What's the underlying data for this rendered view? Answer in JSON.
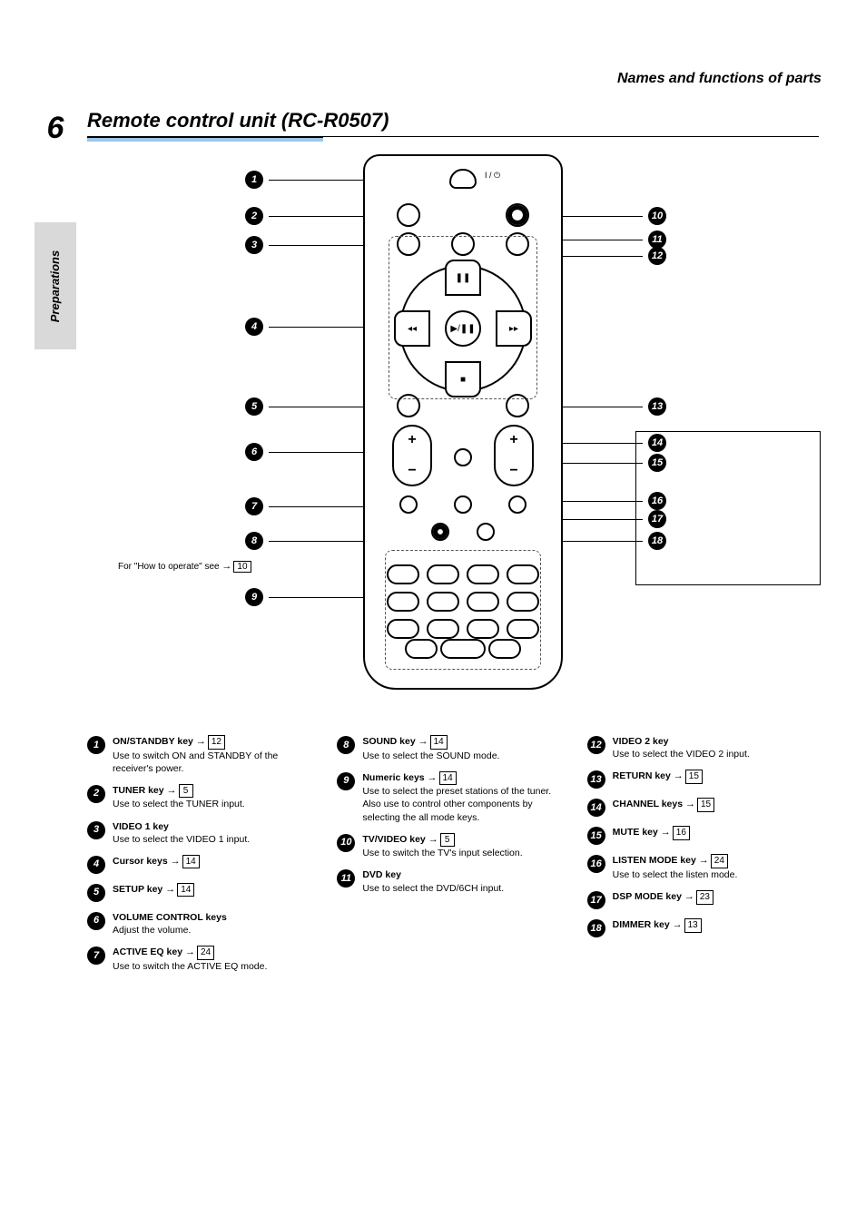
{
  "page_number": "6",
  "side_tab": "Preparations",
  "header": "Names and functions of parts",
  "title": "Remote control unit (RC-R0507)",
  "how_to_operate_note": "For \"How to operate\" see",
  "how_to_operate_page": "10",
  "note_box_visible": true,
  "remote": {
    "ir_label": "I / ⏻",
    "cross": {
      "up": "❚❚",
      "down": "■",
      "left": "◂◂",
      "right": "▸▸",
      "center": "▶/❚❚"
    }
  },
  "callouts_left": [
    {
      "n": "1",
      "desc": "ON/STANDBY key",
      "page": "12",
      "extra": "Use to switch ON and STANDBY of the receiver's power."
    },
    {
      "n": "2",
      "desc": "TUNER key",
      "page": "5",
      "extra": "Use to select the TUNER input."
    },
    {
      "n": "3",
      "desc": "VIDEO 1 key",
      "page": "",
      "extra": "Use to select the VIDEO 1 input."
    },
    {
      "n": "4",
      "desc": "Cursor keys",
      "page": "14",
      "extra": ""
    },
    {
      "n": "5",
      "desc": "SETUP key",
      "page": "14",
      "extra": ""
    },
    {
      "n": "6",
      "desc": "VOLUME CONTROL keys",
      "page": "",
      "extra": "Adjust the volume."
    },
    {
      "n": "7",
      "desc": "ACTIVE EQ key",
      "page": "24",
      "extra": "Use to switch the ACTIVE EQ mode."
    }
  ],
  "callouts_mid": [
    {
      "n": "8",
      "desc": "SOUND key",
      "page": "14",
      "extra": "Use to select the SOUND mode."
    },
    {
      "n": "9",
      "desc": "Numeric keys",
      "page": "14",
      "extra": "Use to select the preset stations of the tuner. Also use to control other components by selecting the all mode keys."
    },
    {
      "n": "10",
      "desc": "TV/VIDEO key",
      "page": "5",
      "extra": "Use to switch the TV's input selection."
    },
    {
      "n": "11",
      "desc": "DVD key",
      "page": "",
      "extra": "Use to select the DVD/6CH input."
    }
  ],
  "callouts_right": [
    {
      "n": "12",
      "desc": "VIDEO 2 key",
      "page": "",
      "extra": "Use to select the VIDEO 2 input."
    },
    {
      "n": "13",
      "desc": "RETURN key",
      "page": "15",
      "extra": ""
    },
    {
      "n": "14",
      "desc": "CHANNEL keys",
      "page": "15",
      "extra": ""
    },
    {
      "n": "15",
      "desc": "MUTE key",
      "page": "16",
      "extra": ""
    },
    {
      "n": "16",
      "desc": "LISTEN MODE key",
      "page": "24",
      "extra": "Use to select the listen mode."
    },
    {
      "n": "17",
      "desc": "DSP MODE key",
      "page": "23",
      "extra": ""
    },
    {
      "n": "18",
      "desc": "DIMMER key",
      "page": "13",
      "extra": ""
    }
  ],
  "diagram_left_badges": [
    "1",
    "2",
    "3",
    "4",
    "5",
    "6",
    "7",
    "8",
    "9"
  ],
  "diagram_right_badges": [
    "10",
    "11",
    "12",
    "13",
    "14",
    "15",
    "16",
    "17",
    "18"
  ]
}
